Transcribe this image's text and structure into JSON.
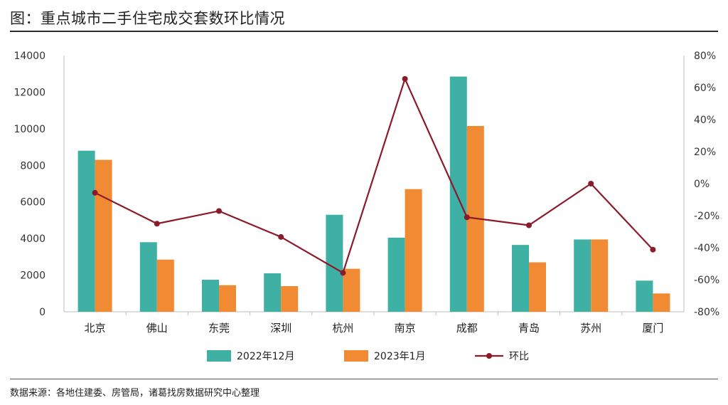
{
  "title": "图：重点城市二手住宅成交套数环比情况",
  "source": "数据来源：各地住建委、房管局，诸葛找房数据研究中心整理",
  "chart_data": {
    "type": "bar",
    "categories": [
      "北京",
      "佛山",
      "东莞",
      "深圳",
      "杭州",
      "南京",
      "成都",
      "青岛",
      "苏州",
      "厦门"
    ],
    "series": [
      {
        "name": "2022年12月",
        "values": [
          8800,
          3800,
          1750,
          2100,
          5300,
          4050,
          12850,
          3650,
          3950,
          1700
        ],
        "color": "#3fb0a4"
      },
      {
        "name": "2023年1月",
        "values": [
          8300,
          2850,
          1450,
          1400,
          2350,
          6700,
          10150,
          2700,
          3950,
          1000
        ],
        "color": "#f08b33"
      },
      {
        "name": "环比",
        "type": "line",
        "axis": "right",
        "values": [
          -5.7,
          -25.0,
          -17.1,
          -33.3,
          -55.7,
          65.4,
          -21.0,
          -26.0,
          0.0,
          -41.2
        ],
        "color": "#8b1a2b"
      }
    ],
    "ylim": [
      0,
      14000
    ],
    "yticks": [
      0,
      2000,
      4000,
      6000,
      8000,
      10000,
      12000,
      14000
    ],
    "y2lim": [
      -80,
      80
    ],
    "y2ticks": [
      "-80%",
      "-60%",
      "-40%",
      "-20%",
      "0%",
      "20%",
      "40%",
      "60%",
      "80%"
    ],
    "y2tick_values": [
      -80,
      -60,
      -40,
      -20,
      0,
      20,
      40,
      60,
      80
    ],
    "legend": "bottom"
  }
}
